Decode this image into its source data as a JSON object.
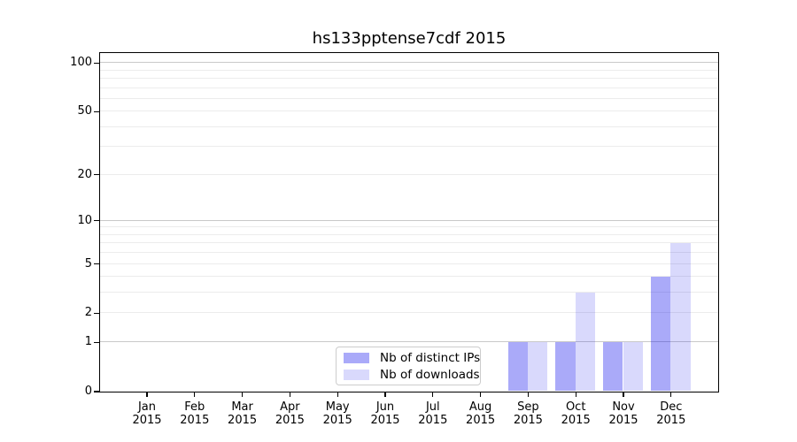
{
  "title": "hs133pptense7cdf 2015",
  "legend": {
    "items": [
      {
        "label": "Nb of distinct IPs",
        "color": "rgba(0,0,238,0.335)"
      },
      {
        "label": "Nb of downloads",
        "color": "rgba(0,0,238,0.148)"
      }
    ]
  },
  "colors": {
    "bar_distinct_ips": "rgba(0,0,238,0.335)",
    "bar_downloads": "rgba(0,0,238,0.148)",
    "gridline_minor": "#ececec",
    "gridline_major": "#c9c9c9",
    "axis": "#000000",
    "background": "#ffffff"
  },
  "chart_data": {
    "type": "bar",
    "title": "hs133pptense7cdf 2015",
    "categories": [
      "Jan 2015",
      "Feb 2015",
      "Mar 2015",
      "Apr 2015",
      "May 2015",
      "Jun 2015",
      "Jul 2015",
      "Aug 2015",
      "Sep 2015",
      "Oct 2015",
      "Nov 2015",
      "Dec 2015"
    ],
    "months": [
      "Jan",
      "Feb",
      "Mar",
      "Apr",
      "May",
      "Jun",
      "Jul",
      "Aug",
      "Sep",
      "Oct",
      "Nov",
      "Dec"
    ],
    "year": "2015",
    "series": [
      {
        "name": "Nb of distinct IPs",
        "color": "rgba(0,0,238,0.335)",
        "values": [
          0,
          0,
          0,
          0,
          0,
          0,
          0,
          0,
          1,
          1,
          1,
          4
        ]
      },
      {
        "name": "Nb of downloads",
        "color": "rgba(0,0,238,0.148)",
        "values": [
          0,
          0,
          0,
          0,
          0,
          0,
          0,
          0,
          1,
          3,
          1,
          7
        ]
      }
    ],
    "xlabel": "",
    "ylabel": "",
    "y_scale": "log1p",
    "y_ticks": [
      0,
      1,
      2,
      5,
      10,
      20,
      50,
      100
    ],
    "y_minor_gridlines": [
      2,
      3,
      4,
      5,
      6,
      7,
      8,
      9,
      20,
      30,
      40,
      50,
      60,
      70,
      80,
      90
    ],
    "y_major_gridlines": [
      1,
      10,
      100
    ],
    "ylim": [
      0,
      115
    ],
    "grid": true,
    "legend_position": "lower center-left"
  }
}
